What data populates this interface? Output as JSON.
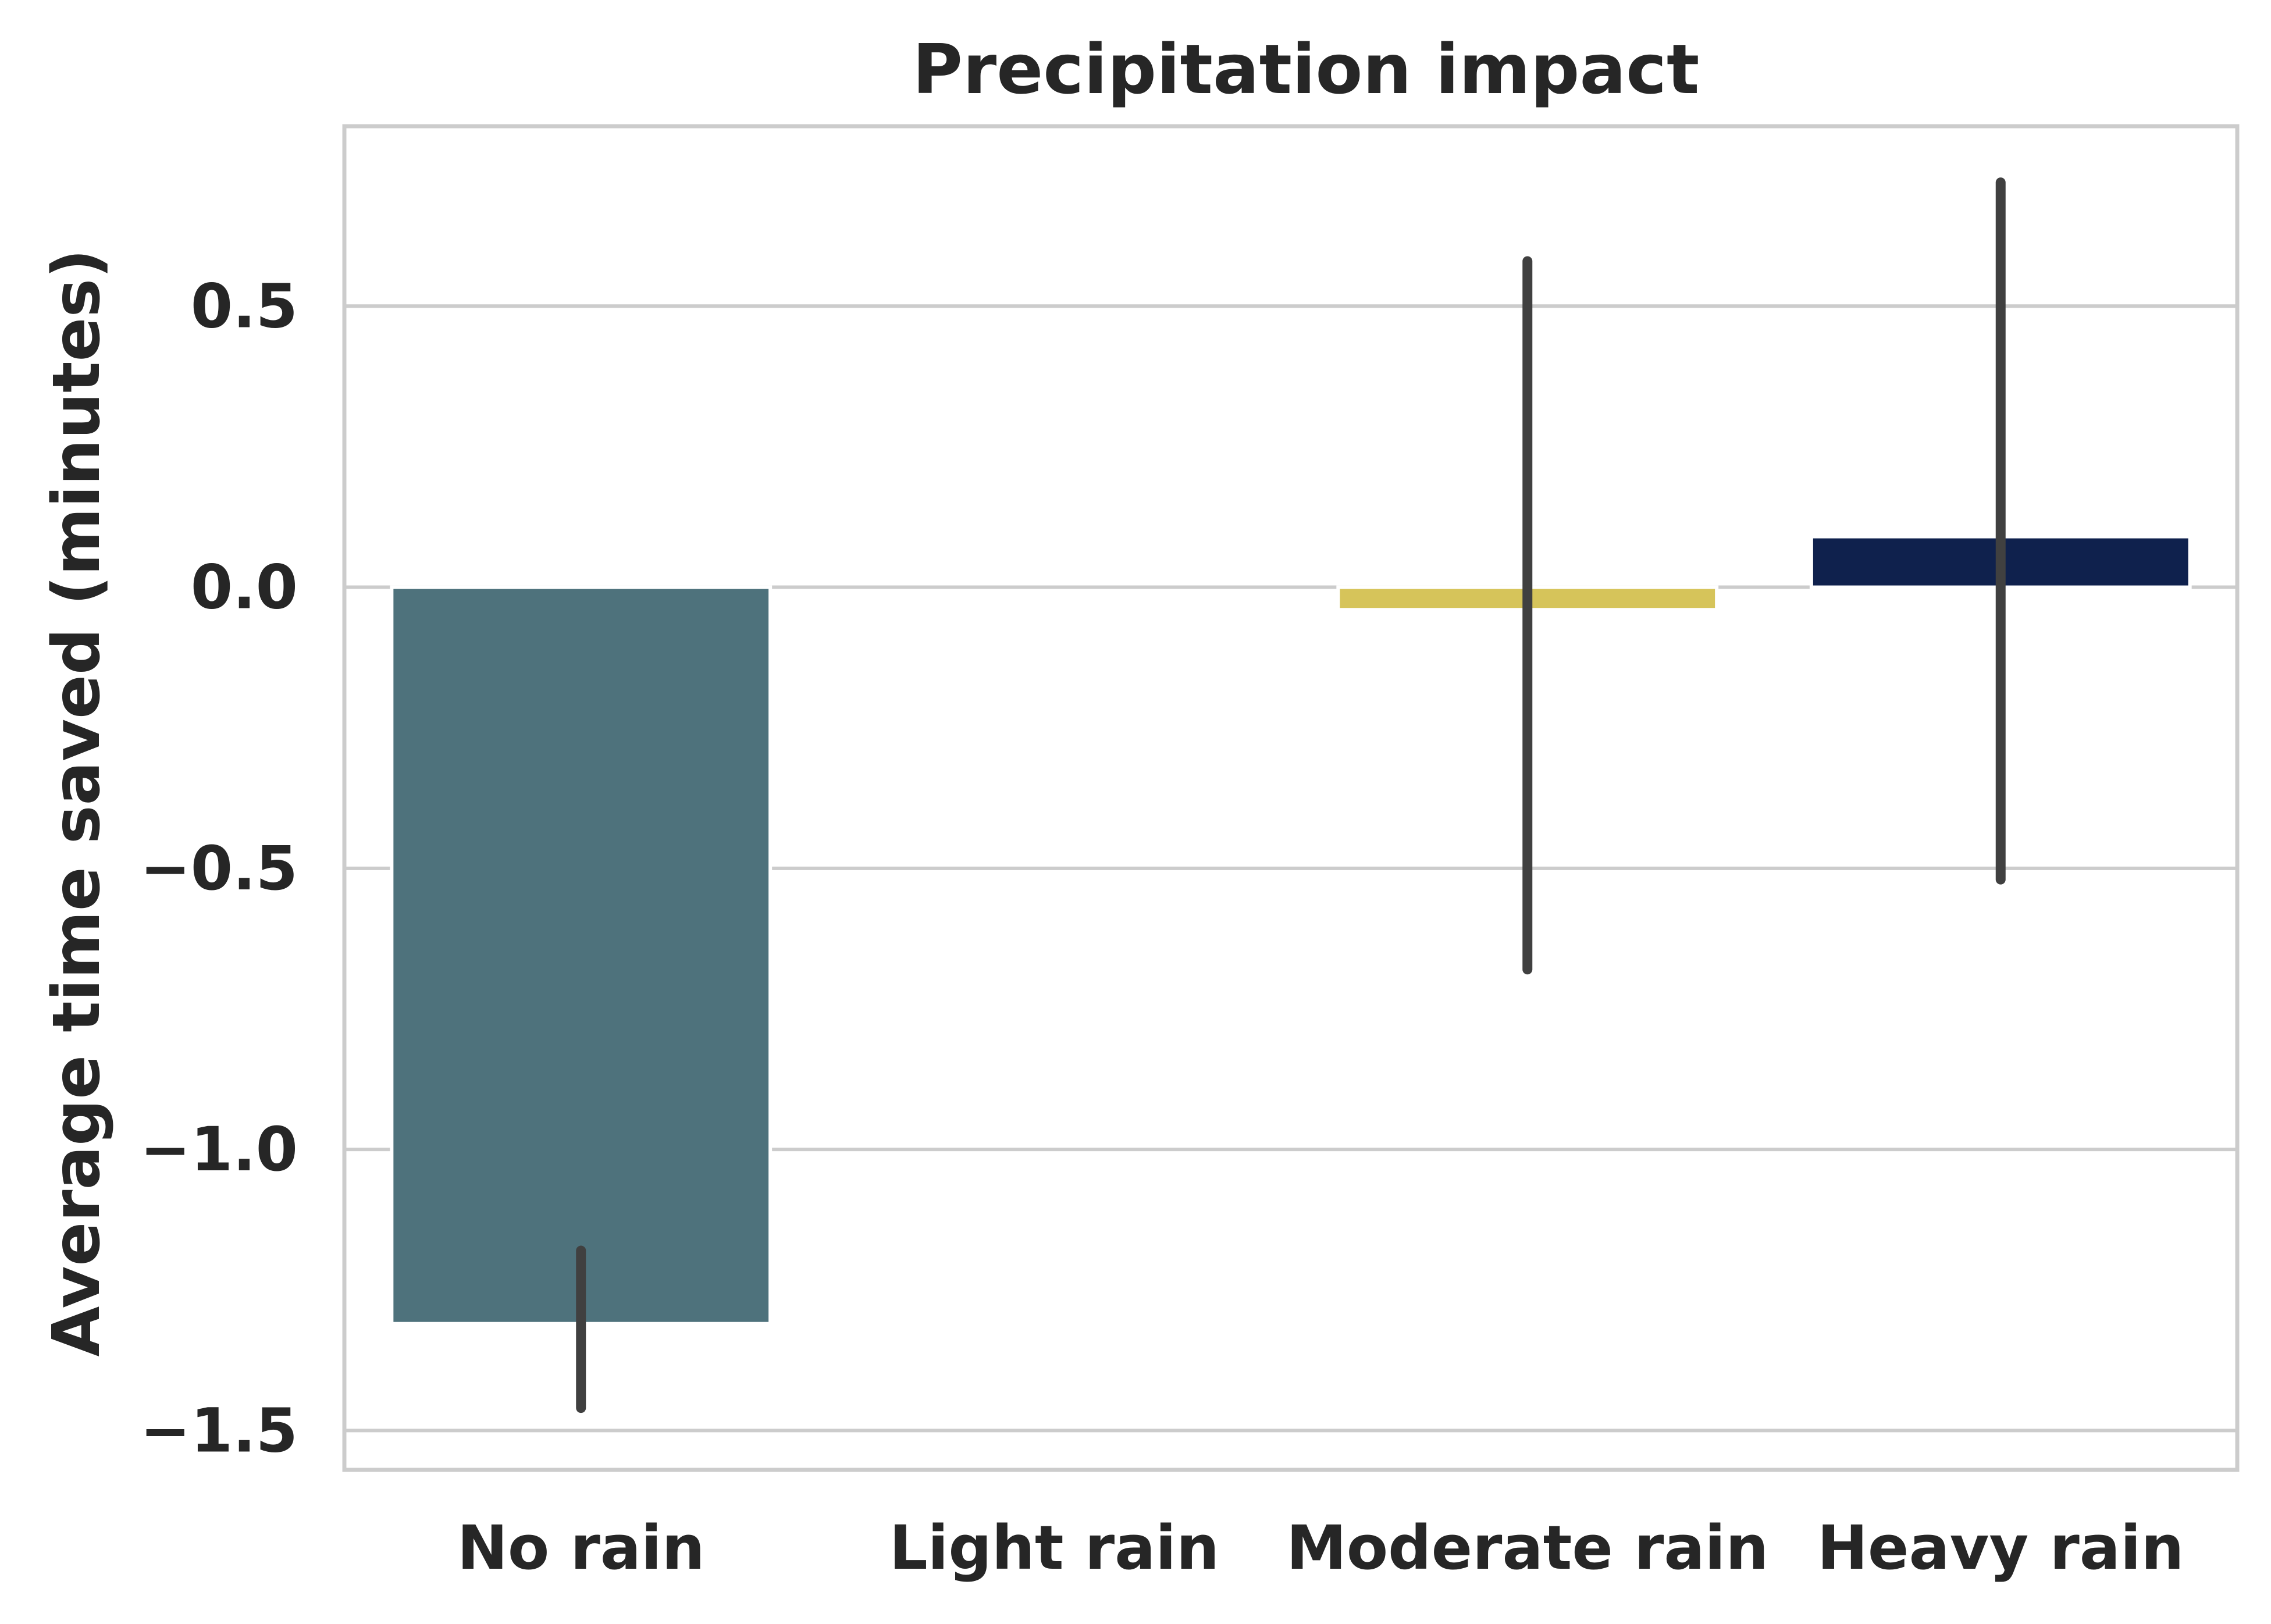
{
  "chart_data": {
    "type": "bar",
    "title": "Precipitation impact",
    "xlabel": "",
    "ylabel": "Average time saved (minutes)",
    "ylim": [
      -1.57,
      0.82
    ],
    "yticks": [
      0.5,
      0.0,
      -0.5,
      -1.0,
      -1.5
    ],
    "ytick_labels": [
      "0.5",
      "0.0",
      "−0.5",
      "−1.0",
      "−1.5"
    ],
    "grid": true,
    "categories": [
      "No rain",
      "Light rain",
      "Moderate rain",
      "Heavy rain"
    ],
    "values": [
      -1.31,
      null,
      -0.04,
      0.09
    ],
    "error_bars": [
      [
        -1.46,
        -1.18
      ],
      null,
      [
        -0.68,
        0.58
      ],
      [
        -0.52,
        0.72
      ]
    ],
    "colors": [
      "#4e727c",
      null,
      "#d6c45a",
      "#0f214d"
    ]
  }
}
